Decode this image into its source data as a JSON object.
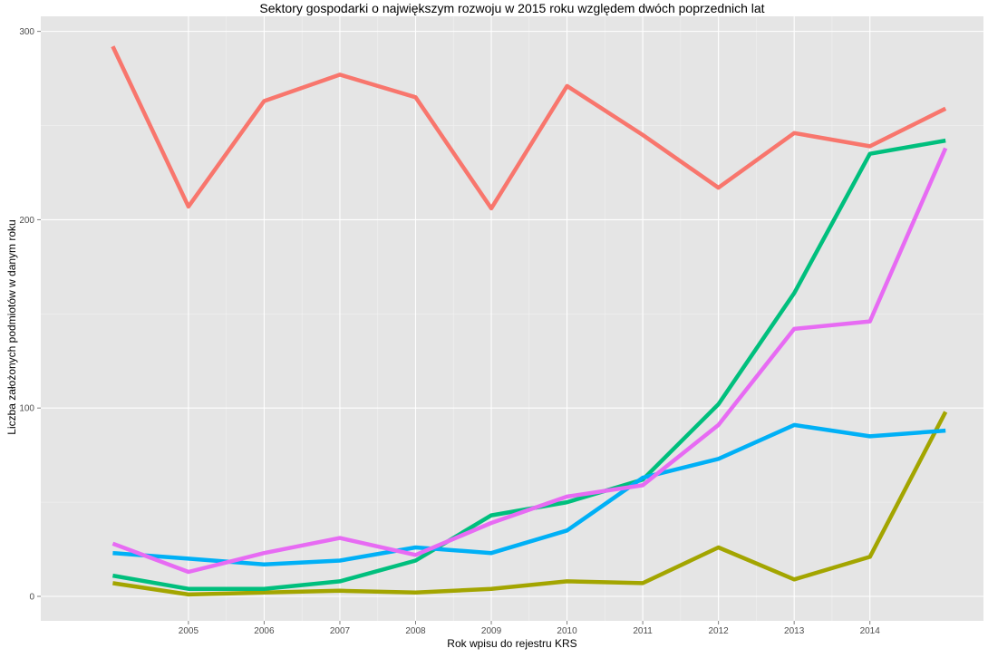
{
  "chart_data": {
    "type": "line",
    "title": "Sektory gospodarki o największym rozwoju w 2015 roku względem dwóch poprzednich lat",
    "xlabel": "Rok wpisu do rejestru KRS",
    "ylabel": "Liczba założonych podmiotów w danym roku",
    "x": [
      2004,
      2005,
      2006,
      2007,
      2008,
      2009,
      2010,
      2011,
      2012,
      2013,
      2014,
      2015
    ],
    "x_tick_labels": [
      "2005",
      "2006",
      "2007",
      "2008",
      "2009",
      "2010",
      "2011",
      "2012",
      "2013",
      "2014"
    ],
    "x_ticks": [
      2005,
      2006,
      2007,
      2008,
      2009,
      2010,
      2011,
      2012,
      2013,
      2014
    ],
    "y_ticks": [
      0,
      100,
      200,
      300
    ],
    "y_tick_labels": [
      "0",
      "100",
      "200",
      "300"
    ],
    "xlim": [
      2003.05,
      2015.5
    ],
    "ylim": [
      -13,
      308
    ],
    "grid": true,
    "legend": "none",
    "background": "#e5e5e5",
    "gridline_color": "#ffffff",
    "series": [
      {
        "color": "#f8766d",
        "values": [
          292,
          207,
          263,
          277,
          265,
          206,
          271,
          245,
          217,
          246,
          239,
          259
        ]
      },
      {
        "color": "#a3a500",
        "values": [
          7,
          1,
          2,
          3,
          2,
          4,
          8,
          7,
          26,
          9,
          21,
          98
        ]
      },
      {
        "color": "#00bf7d",
        "values": [
          11,
          4,
          4,
          8,
          19,
          43,
          50,
          62,
          102,
          161,
          235,
          242
        ]
      },
      {
        "color": "#00b0f6",
        "values": [
          23,
          20,
          17,
          19,
          26,
          23,
          35,
          63,
          73,
          91,
          85,
          88
        ]
      },
      {
        "color": "#e76bf3",
        "values": [
          28,
          13,
          23,
          31,
          22,
          39,
          53,
          59,
          91,
          142,
          146,
          238
        ]
      }
    ]
  }
}
